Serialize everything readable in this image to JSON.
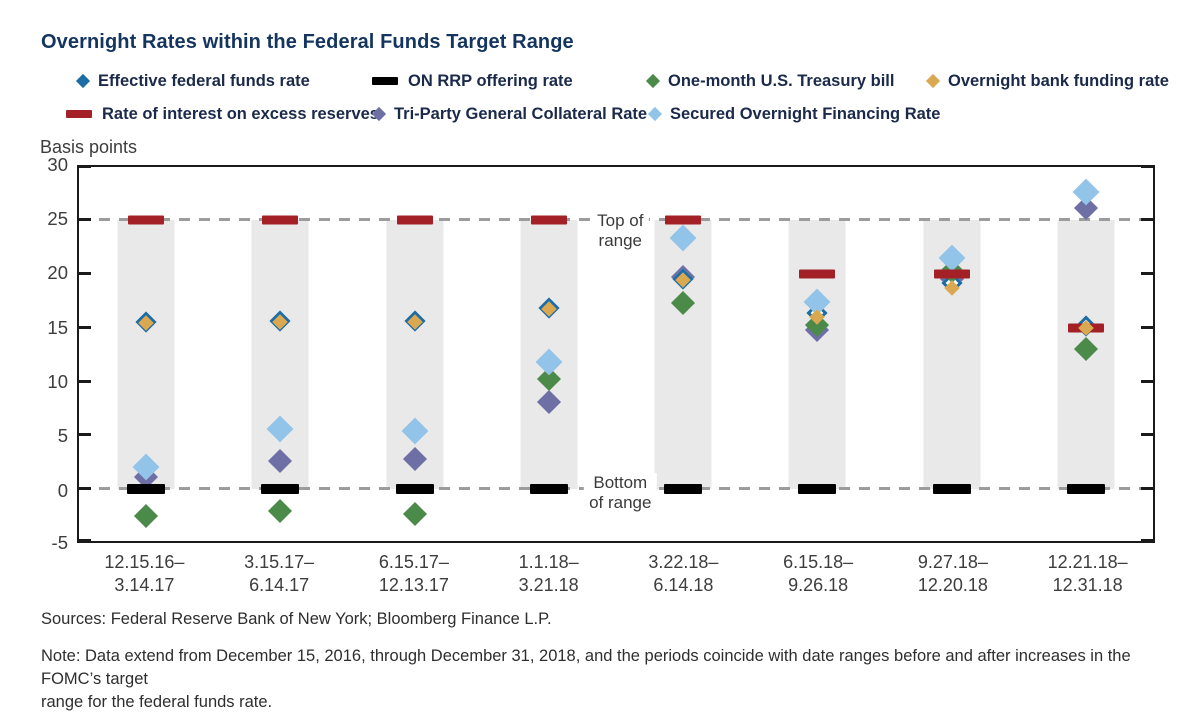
{
  "title": "Overnight Rates within the Federal Funds Target Range",
  "axis": {
    "unit_label": "Basis points"
  },
  "annotations": {
    "top_of_range": [
      "Top of",
      "range"
    ],
    "bottom_of_range": [
      "Bottom",
      "of range"
    ]
  },
  "footer": {
    "sources": "Sources: Federal Reserve Bank of New York; Bloomberg Finance L.P.",
    "note_line1": "Note: Data extend from December 15, 2016, through December 31, 2018, and the periods coincide with date ranges before and after increases in the FOMC’s target",
    "note_line2": "range for the federal funds rate."
  },
  "chart_data": {
    "type": "scatter",
    "title": "Overnight Rates within the Federal Funds Target Range",
    "ylabel": "Basis points",
    "ylim": [
      -5,
      30
    ],
    "y_ticks": [
      30,
      25,
      20,
      15,
      10,
      5,
      0,
      -5
    ],
    "grid": "dashed horizontal reference lines at 0 and 25 only",
    "legend_position": "top, two rows",
    "target_range_band": {
      "from": 0,
      "to": 25,
      "label_top": "Top of range",
      "label_bottom": "Bottom of range",
      "color": "#e9e9e9"
    },
    "categories": [
      "12.15.16–3.14.17",
      "3.15.17–6.14.17",
      "6.15.17–12.13.17",
      "1.1.18–3.21.18",
      "3.22.18–6.14.18",
      "6.15.18–9.26.18",
      "9.27.18–12.20.18",
      "12.21.18–12.31.18"
    ],
    "series": [
      {
        "name": "Effective federal funds rate",
        "color": "#1d6ca3",
        "shape": "diamond",
        "outline": true,
        "side": 15,
        "z": 2,
        "values": [
          15.5,
          15.6,
          15.6,
          16.8,
          19.5,
          16.4,
          19.2,
          15.2
        ]
      },
      {
        "name": "ON RRP offering rate",
        "color": "#000000",
        "shape": "bar",
        "w": 38,
        "h": 10,
        "z": 5,
        "values": [
          0,
          0,
          0,
          0,
          0,
          0,
          0,
          0
        ]
      },
      {
        "name": "One-month U.S. Treasury bill",
        "color": "#4c8a4a",
        "shape": "diamond",
        "side": 17,
        "z": 3,
        "values": [
          -2.5,
          -2.0,
          -2.3,
          10.2,
          17.3,
          15.3,
          20.3,
          13.0
        ]
      },
      {
        "name": "Overnight bank funding rate",
        "color": "#d9a850",
        "shape": "diamond",
        "side": 11,
        "z": 6,
        "values": [
          15.4,
          15.5,
          15.5,
          16.7,
          19.4,
          16.0,
          18.7,
          15.0
        ]
      },
      {
        "name": "Rate of interest on excess reserves",
        "color": "#a32126",
        "shape": "bar",
        "w": 36,
        "h": 9,
        "z": 5,
        "values": [
          25,
          25,
          25,
          25,
          25,
          20,
          20,
          15
        ]
      },
      {
        "name": "Tri-Party General Collateral Rate",
        "color": "#6d6fa5",
        "shape": "diamond",
        "side": 17,
        "z": 1,
        "values": [
          1.1,
          2.6,
          2.8,
          8.1,
          19.7,
          14.8,
          19.5,
          26.1
        ]
      },
      {
        "name": "Secured Overnight Financing Rate",
        "color": "#92c3e8",
        "shape": "diamond",
        "side": 19,
        "z": 4,
        "values": [
          2.1,
          5.6,
          5.4,
          11.8,
          23.3,
          17.4,
          21.5,
          27.6
        ]
      }
    ]
  }
}
